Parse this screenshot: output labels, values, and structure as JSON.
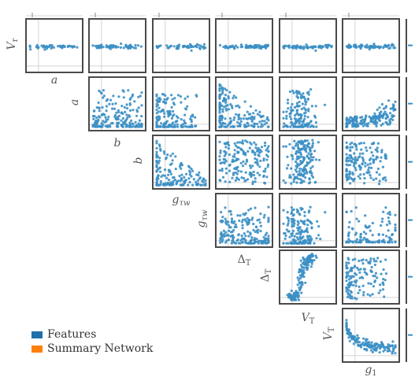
{
  "chart_data": {
    "type": "scatter",
    "description_rows": [
      "V_r",
      "a",
      "b",
      "g_tau_w",
      "Delta_T",
      "V_T"
    ],
    "description_cols": [
      "a",
      "b",
      "g_tau_w",
      "Delta_T",
      "V_T",
      "g_1"
    ],
    "legend": [
      {
        "label": "Features",
        "color": "#1f6fa8"
      },
      {
        "label": "Summary Network",
        "color": "#ff7f0e"
      }
    ],
    "point_color": "#3b8fc4",
    "grid": true,
    "panels": [
      {
        "row": "V_r",
        "col": "a",
        "pattern": "flat-line",
        "n": 45
      },
      {
        "row": "V_r",
        "col": "b",
        "pattern": "flat-line",
        "n": 60
      },
      {
        "row": "V_r",
        "col": "g_tau_w",
        "pattern": "flat-line",
        "n": 55
      },
      {
        "row": "V_r",
        "col": "Delta_T",
        "pattern": "flat-line",
        "n": 65
      },
      {
        "row": "V_r",
        "col": "V_T",
        "pattern": "flat-line",
        "n": 65
      },
      {
        "row": "V_r",
        "col": "g_1",
        "pattern": "flat-line",
        "n": 70
      },
      {
        "row": "a",
        "col": "b",
        "pattern": "bottom-heavy",
        "n": 170
      },
      {
        "row": "a",
        "col": "g_tau_w",
        "pattern": "left-corner",
        "n": 150
      },
      {
        "row": "a",
        "col": "Delta_T",
        "pattern": "left-decay",
        "n": 180
      },
      {
        "row": "a",
        "col": "V_T",
        "pattern": "center-bottom",
        "n": 150
      },
      {
        "row": "a",
        "col": "g_1",
        "pattern": "left-rise",
        "n": 170
      },
      {
        "row": "b",
        "col": "g_tau_w",
        "pattern": "left-decay",
        "n": 160
      },
      {
        "row": "b",
        "col": "Delta_T",
        "pattern": "uniform",
        "n": 170
      },
      {
        "row": "b",
        "col": "V_T",
        "pattern": "center-band",
        "n": 170
      },
      {
        "row": "b",
        "col": "g_1",
        "pattern": "left-cluster",
        "n": 150
      },
      {
        "row": "g_tau_w",
        "col": "Delta_T",
        "pattern": "bottom-heavy",
        "n": 180
      },
      {
        "row": "g_tau_w",
        "col": "V_T",
        "pattern": "center-bottom",
        "n": 160
      },
      {
        "row": "g_tau_w",
        "col": "g_1",
        "pattern": "sparse-bottom",
        "n": 110
      },
      {
        "row": "Delta_T",
        "col": "V_T",
        "pattern": "s-curve",
        "n": 150
      },
      {
        "row": "Delta_T",
        "col": "g_1",
        "pattern": "left-cluster",
        "n": 130
      },
      {
        "row": "V_T",
        "col": "g_1",
        "pattern": "left-decay-mid",
        "n": 150
      }
    ]
  },
  "axis_labels": {
    "row": [
      {
        "base": "V",
        "sub": "r"
      },
      {
        "base": "a",
        "sub": ""
      },
      {
        "base": "b",
        "sub": ""
      },
      {
        "base": "g",
        "sub": "τw"
      },
      {
        "base": "Δ",
        "sub": "T"
      },
      {
        "base": "V",
        "sub": "T"
      }
    ],
    "col": [
      {
        "base": "a",
        "sub": ""
      },
      {
        "base": "b",
        "sub": ""
      },
      {
        "base": "g",
        "sub": "τw"
      },
      {
        "base": "Δ",
        "sub": "T"
      },
      {
        "base": "V",
        "sub": "T"
      },
      {
        "base": "g",
        "sub": "1"
      }
    ]
  },
  "legend_labels": {
    "features": "Features",
    "summary": "Summary Network"
  }
}
